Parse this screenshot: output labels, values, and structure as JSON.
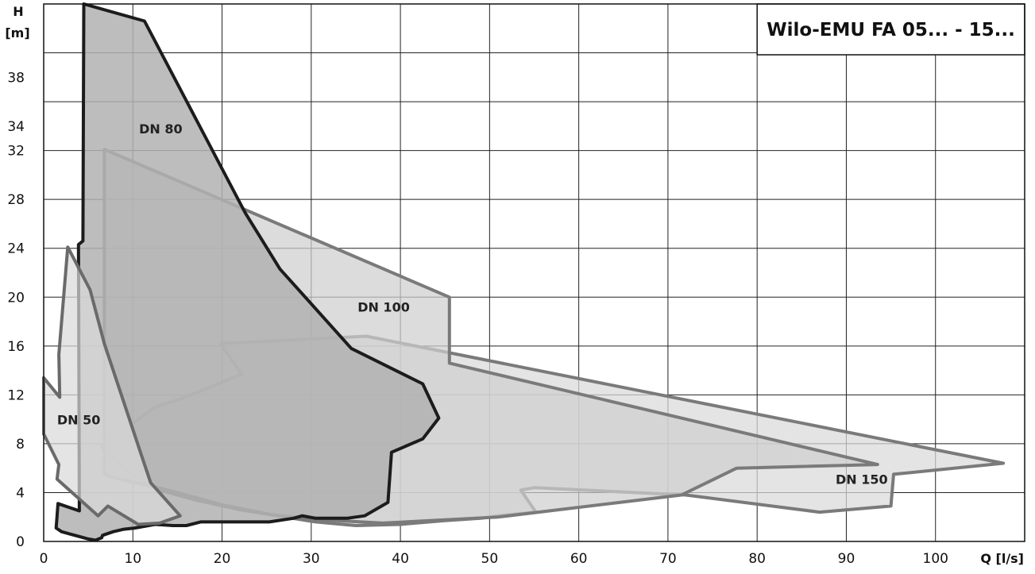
{
  "chart_data": {
    "type": "area",
    "title": "Wilo-EMU FA 05... - 15...",
    "xlabel": "Q [l/s]",
    "ylabel_top": "H",
    "ylabel_unit": "[m]",
    "xlim": [
      0,
      110
    ],
    "ylim": [
      0,
      44
    ],
    "xticks": [
      0,
      10,
      20,
      30,
      40,
      50,
      60,
      70,
      80,
      90,
      100
    ],
    "yticks": [
      0,
      4,
      8,
      12,
      16,
      20,
      24,
      28,
      32,
      34,
      38
    ],
    "grid": true,
    "series": [
      {
        "name": "DN 150",
        "label_at": [
          88.8,
          4.7
        ],
        "fill": "#d9d9d9",
        "stroke": "#7a7a7a",
        "points": [
          [
            19.8,
            16.2
          ],
          [
            36.2,
            16.8
          ],
          [
            107.6,
            6.4
          ],
          [
            95.3,
            5.5
          ],
          [
            95.0,
            2.9
          ],
          [
            87.0,
            2.4
          ],
          [
            72.0,
            3.8
          ],
          [
            55.0,
            4.4
          ],
          [
            53.5,
            4.2
          ],
          [
            55.2,
            2.4
          ],
          [
            51.0,
            2.1
          ],
          [
            49.0,
            1.9
          ],
          [
            45.0,
            1.7
          ],
          [
            40.0,
            1.4
          ],
          [
            35.0,
            1.3
          ],
          [
            30.5,
            1.6
          ],
          [
            27.0,
            2.0
          ],
          [
            22.0,
            2.6
          ],
          [
            17.0,
            3.4
          ],
          [
            13.0,
            4.2
          ],
          [
            10.5,
            5.2
          ],
          [
            8.5,
            6.4
          ],
          [
            6.8,
            7.4
          ],
          [
            6.5,
            7.8
          ],
          [
            12.5,
            11.0
          ],
          [
            15.5,
            11.7
          ],
          [
            22.2,
            13.7
          ]
        ]
      },
      {
        "name": "DN 100",
        "label_at": [
          35.2,
          18.8
        ],
        "fill": "#cfcfcf",
        "stroke": "#7a7a7a",
        "points": [
          [
            6.8,
            32.1
          ],
          [
            45.5,
            20.0
          ],
          [
            45.5,
            14.6
          ],
          [
            93.5,
            6.3
          ],
          [
            77.7,
            6.0
          ],
          [
            71.5,
            3.8
          ],
          [
            51.0,
            2.0
          ],
          [
            38.0,
            1.5
          ],
          [
            30.5,
            1.8
          ],
          [
            25.5,
            2.2
          ],
          [
            20.0,
            3.0
          ],
          [
            14.0,
            4.2
          ],
          [
            8.0,
            5.2
          ],
          [
            6.8,
            5.5
          ]
        ]
      },
      {
        "name": "DN 80",
        "label_at": [
          10.7,
          33.4
        ],
        "fill": "#b2b2b2",
        "stroke": "#1c1c1c",
        "points": [
          [
            4.5,
            44.0
          ],
          [
            11.3,
            42.6
          ],
          [
            22.6,
            26.9
          ],
          [
            26.5,
            22.3
          ],
          [
            34.5,
            15.8
          ],
          [
            42.5,
            12.9
          ],
          [
            44.3,
            10.1
          ],
          [
            42.5,
            8.4
          ],
          [
            39.0,
            7.3
          ],
          [
            38.6,
            3.2
          ],
          [
            36.0,
            2.1
          ],
          [
            34.0,
            1.9
          ],
          [
            30.5,
            1.9
          ],
          [
            29.0,
            2.1
          ],
          [
            28.0,
            1.9
          ],
          [
            25.3,
            1.6
          ],
          [
            20.0,
            1.6
          ],
          [
            17.6,
            1.6
          ],
          [
            16.0,
            1.3
          ],
          [
            14.5,
            1.3
          ],
          [
            12.5,
            1.4
          ],
          [
            11.0,
            1.2
          ],
          [
            10.2,
            1.1
          ],
          [
            9.0,
            1.0
          ],
          [
            7.8,
            0.8
          ],
          [
            6.6,
            0.5
          ],
          [
            6.5,
            0.3
          ],
          [
            5.8,
            0.1
          ],
          [
            5.0,
            0.2
          ],
          [
            4.0,
            0.4
          ],
          [
            3.0,
            0.6
          ],
          [
            2.0,
            0.8
          ],
          [
            1.4,
            1.1
          ],
          [
            1.6,
            3.1
          ],
          [
            4.0,
            2.5
          ],
          [
            3.9,
            24.3
          ],
          [
            4.4,
            24.6
          ],
          [
            4.5,
            44.0
          ]
        ]
      },
      {
        "name": "DN 50",
        "label_at": [
          1.5,
          9.6
        ],
        "fill": "#d9d9d9",
        "stroke": "#6a6a6a",
        "points": [
          [
            0.0,
            13.4
          ],
          [
            1.8,
            11.8
          ],
          [
            1.7,
            15.3
          ],
          [
            2.7,
            24.1
          ],
          [
            5.2,
            20.6
          ],
          [
            6.8,
            16.2
          ],
          [
            10.8,
            7.4
          ],
          [
            12.0,
            4.8
          ],
          [
            15.3,
            2.1
          ],
          [
            13.0,
            1.5
          ],
          [
            10.6,
            1.4
          ],
          [
            7.2,
            2.9
          ],
          [
            6.1,
            2.1
          ],
          [
            1.5,
            5.1
          ],
          [
            1.7,
            6.3
          ],
          [
            0.0,
            8.8
          ]
        ]
      }
    ]
  }
}
